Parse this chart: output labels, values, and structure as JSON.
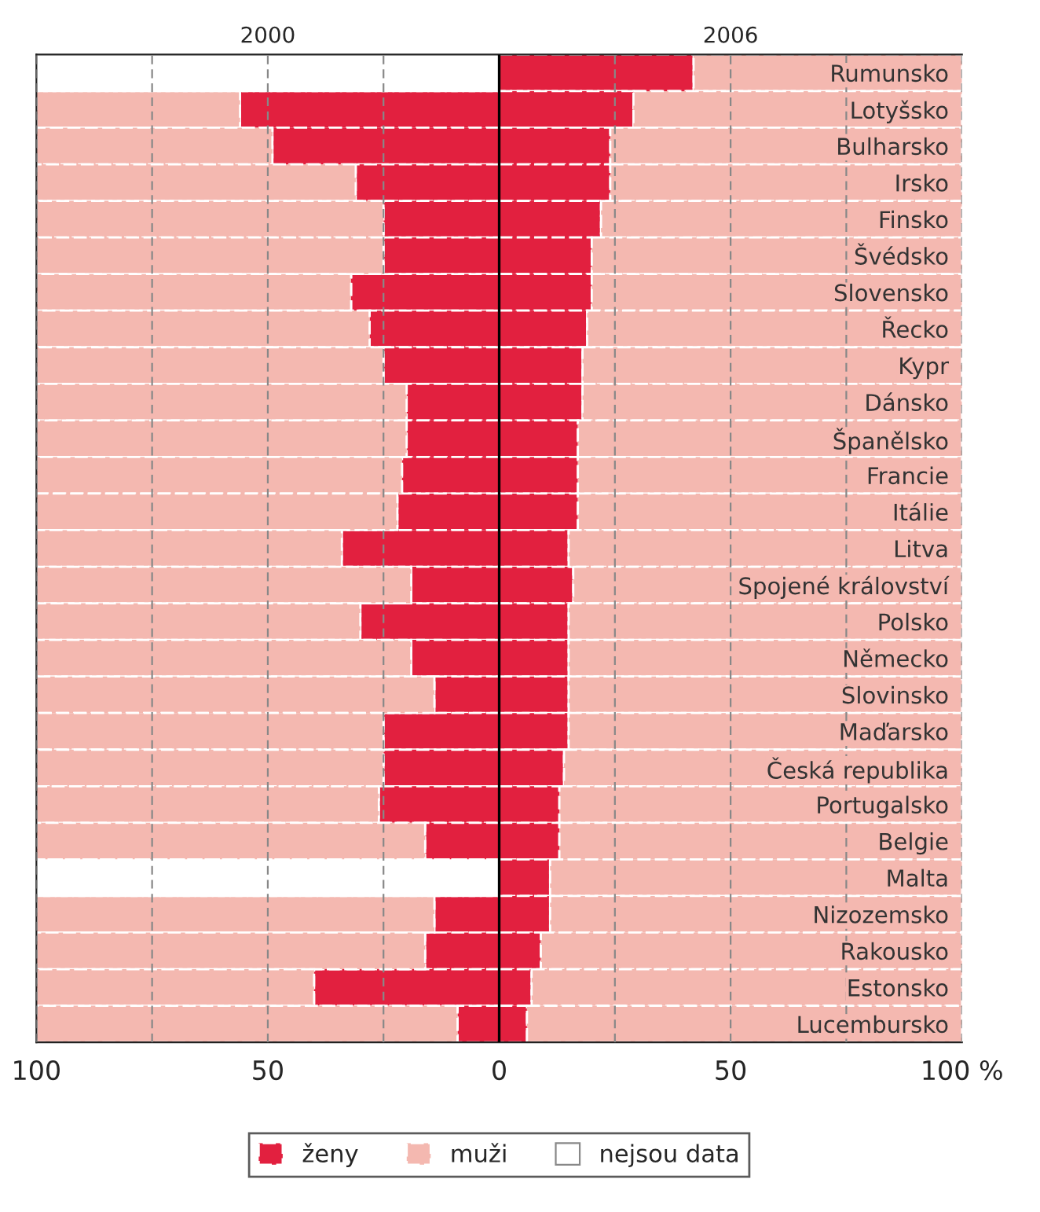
{
  "chart_data": {
    "type": "bar",
    "orientation": "horizontal",
    "stacked": true,
    "categories": [
      "Rumunsko",
      "Lotyšsko",
      "Bulharsko",
      "Irsko",
      "Finsko",
      "Švédsko",
      "Slovensko",
      "Řecko",
      "Kypr",
      "Dánsko",
      "Španělsko",
      "Francie",
      "Itálie",
      "Litva",
      "Spojené království",
      "Polsko",
      "Německo",
      "Slovinsko",
      "Maďarsko",
      "Česká republika",
      "Portugalsko",
      "Belgie",
      "Malta",
      "Nizozemsko",
      "Rakousko",
      "Estonsko",
      "Lucembursko"
    ],
    "series": [
      {
        "name": "ženy",
        "color": "#e2203f",
        "values": [
          null,
          -56,
          -49,
          -31,
          -25,
          -25,
          -32,
          -28,
          -25,
          -20,
          -20,
          -21,
          -22,
          -34,
          -19,
          -30,
          -19,
          -14,
          -25,
          -25,
          -26,
          -16,
          null,
          -14,
          -16,
          -40,
          -9
        ]
      },
      {
        "name": "muži",
        "color": "#f4b8b0",
        "values": [
          null,
          -44,
          -51,
          -69,
          -75,
          -75,
          -68,
          -72,
          -75,
          -80,
          -80,
          -79,
          -78,
          -66,
          -81,
          -70,
          -81,
          -86,
          -75,
          -75,
          -74,
          -84,
          null,
          -86,
          -84,
          -60,
          -91
        ]
      },
      {
        "name": "nejsou data",
        "color": "#ffffff",
        "values": [
          -100,
          null,
          null,
          null,
          null,
          null,
          null,
          null,
          null,
          null,
          null,
          null,
          null,
          null,
          null,
          null,
          null,
          null,
          null,
          null,
          null,
          null,
          -100,
          null,
          null,
          null,
          null
        ]
      },
      {
        "color": "#e2203f",
        "values": [
          42,
          29,
          24,
          24,
          22,
          20,
          20,
          19,
          18,
          18,
          17,
          17,
          17,
          15,
          16,
          15,
          15,
          15,
          15,
          14,
          13,
          13,
          11,
          11,
          9,
          7,
          6
        ]
      },
      {
        "color": "#f4b8b0",
        "values": [
          58,
          71,
          76,
          76,
          78,
          80,
          80,
          81,
          82,
          82,
          83,
          83,
          83,
          85,
          84,
          85,
          85,
          85,
          85,
          86,
          87,
          87,
          89,
          89,
          91,
          93,
          94
        ]
      }
    ],
    "xlim": [
      -100,
      100
    ],
    "xticks": [
      {
        "value": -100,
        "label": "100"
      },
      {
        "value": -75,
        "label": null
      },
      {
        "value": -50,
        "label": "50"
      },
      {
        "value": -25,
        "label": null
      },
      0,
      {
        "value": 25,
        "label": null
      },
      50,
      {
        "value": 75,
        "label": null
      },
      {
        "value": 100,
        "label": "100 %"
      }
    ],
    "grid": "x",
    "ref_lines": [
      {
        "axis": "x",
        "value": 0,
        "color": "#000000"
      }
    ],
    "annotations": [
      "2000",
      "2006"
    ],
    "legend": "bottom"
  }
}
